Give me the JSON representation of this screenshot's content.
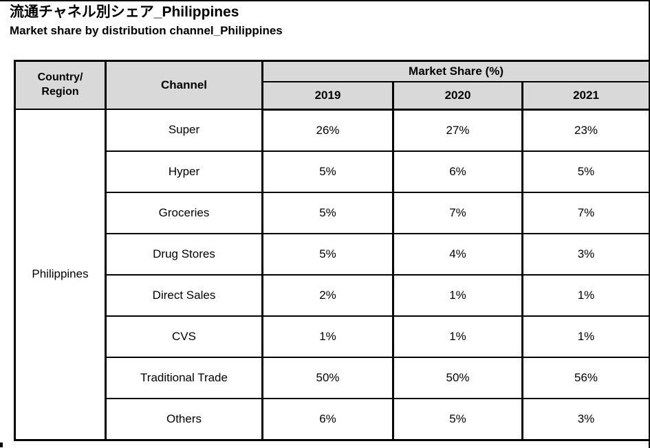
{
  "page": {
    "title_jp": "流通チャネル別シェア_Philippines",
    "title_en": "Market share by distribution channel_Philippines"
  },
  "table": {
    "header": {
      "country_region": "Country/\nRegion",
      "channel": "Channel",
      "market_share": "Market Share (%)",
      "years": [
        "2019",
        "2020",
        "2021"
      ]
    },
    "country": "Philippines",
    "rows": [
      {
        "channel": "Super",
        "values": [
          "26%",
          "27%",
          "23%"
        ]
      },
      {
        "channel": "Hyper",
        "values": [
          "5%",
          "6%",
          "5%"
        ]
      },
      {
        "channel": "Groceries",
        "values": [
          "5%",
          "7%",
          "7%"
        ]
      },
      {
        "channel": "Drug Stores",
        "values": [
          "5%",
          "4%",
          "3%"
        ]
      },
      {
        "channel": "Direct Sales",
        "values": [
          "2%",
          "1%",
          "1%"
        ]
      },
      {
        "channel": "CVS",
        "values": [
          "1%",
          "1%",
          "1%"
        ]
      },
      {
        "channel": "Traditional Trade",
        "values": [
          "50%",
          "50%",
          "56%"
        ]
      },
      {
        "channel": "Others",
        "values": [
          "6%",
          "5%",
          "3%"
        ]
      }
    ],
    "colors": {
      "header_bg": "#d9d9d9",
      "border": "#000000",
      "text": "#000000",
      "background": "#ffffff"
    }
  },
  "chart_data": {
    "type": "table",
    "title": "流通チャネル別シェア_Philippines",
    "subtitle": "Market share by distribution channel_Philippines",
    "country": "Philippines",
    "value_header": "Market Share (%)",
    "categories": [
      "2019",
      "2020",
      "2021"
    ],
    "series": [
      {
        "name": "Super",
        "values": [
          26,
          27,
          23
        ]
      },
      {
        "name": "Hyper",
        "values": [
          5,
          6,
          5
        ]
      },
      {
        "name": "Groceries",
        "values": [
          5,
          7,
          7
        ]
      },
      {
        "name": "Drug Stores",
        "values": [
          5,
          4,
          3
        ]
      },
      {
        "name": "Direct Sales",
        "values": [
          2,
          1,
          1
        ]
      },
      {
        "name": "CVS",
        "values": [
          1,
          1,
          1
        ]
      },
      {
        "name": "Traditional Trade",
        "values": [
          50,
          50,
          56
        ]
      },
      {
        "name": "Others",
        "values": [
          6,
          5,
          3
        ]
      }
    ]
  }
}
